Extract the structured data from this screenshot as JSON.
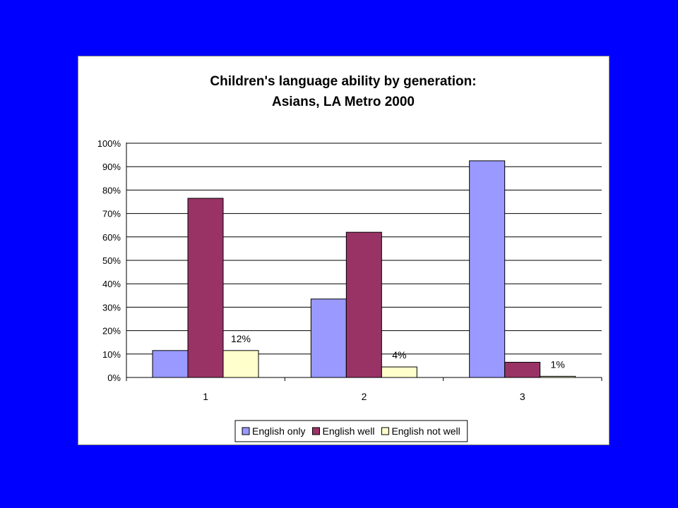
{
  "chart_data": {
    "type": "bar",
    "title": "Children's language ability by generation:",
    "subtitle": "Asians, LA Metro 2000",
    "xlabel": "",
    "ylabel": "",
    "categories": [
      "1",
      "2",
      "3"
    ],
    "ylim": [
      0,
      100
    ],
    "y_ticks": [
      "0%",
      "10%",
      "20%",
      "30%",
      "40%",
      "50%",
      "60%",
      "70%",
      "80%",
      "90%",
      "100%"
    ],
    "grid": true,
    "legend_position": "bottom",
    "series": [
      {
        "name": "English only",
        "values": [
          11.5,
          33.5,
          92.5
        ],
        "color": "#9999FF"
      },
      {
        "name": "English well",
        "values": [
          76.5,
          62,
          6.5
        ],
        "color": "#993366"
      },
      {
        "name": "English not well",
        "values": [
          11.5,
          4.5,
          0.5
        ],
        "color": "#FFFFCC"
      }
    ],
    "data_labels": [
      {
        "series": 2,
        "category": 0,
        "text": "12%"
      },
      {
        "series": 2,
        "category": 1,
        "text": "4%"
      },
      {
        "series": 2,
        "category": 2,
        "text": "1%"
      }
    ]
  },
  "colors": {
    "slide_background": "#0000FF",
    "panel_background": "#FFFFFF",
    "axis": "#000000",
    "gridline": "#000000"
  }
}
